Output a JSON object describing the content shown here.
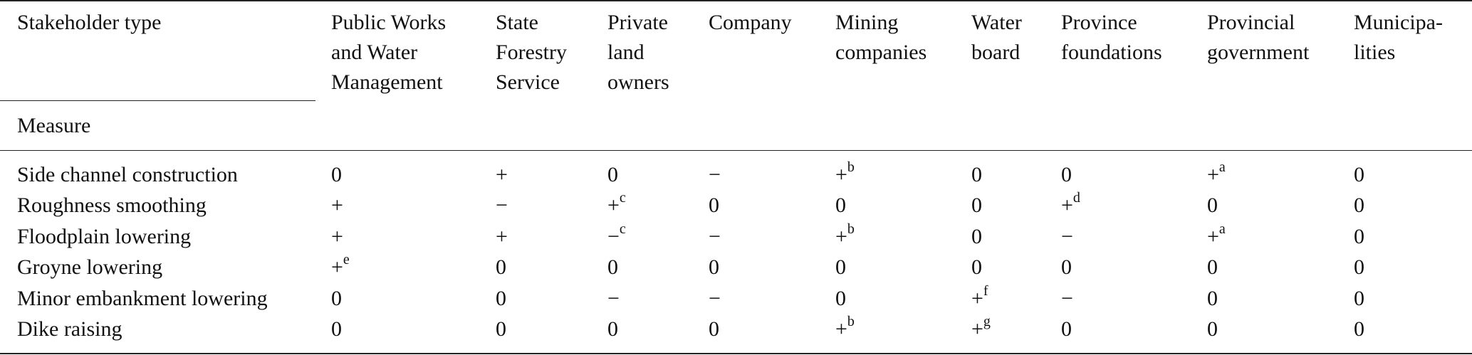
{
  "table": {
    "row_header": "Stakeholder type",
    "column_header": "Measure",
    "columns": [
      [
        "Public Works",
        "and Water",
        "Management"
      ],
      [
        "State",
        "Forestry",
        "Service"
      ],
      [
        "Private",
        "land",
        "owners"
      ],
      [
        "Company"
      ],
      [
        "Mining",
        "companies"
      ],
      [
        "Water",
        "board"
      ],
      [
        "Province",
        "foundations"
      ],
      [
        "Provincial",
        "government"
      ],
      [
        "Municipa-",
        "lities"
      ]
    ],
    "rows": [
      {
        "measure": "Side channel construction",
        "cells": [
          "0",
          "+",
          "0",
          "−",
          {
            "symbol": "+",
            "note": "b"
          },
          "0",
          "0",
          {
            "symbol": "+",
            "note": "a"
          },
          "0"
        ]
      },
      {
        "measure": "Roughness smoothing",
        "cells": [
          "+",
          "−",
          {
            "symbol": "+",
            "note": "c"
          },
          "0",
          "0",
          "0",
          {
            "symbol": "+",
            "note": "d"
          },
          "0",
          "0"
        ]
      },
      {
        "measure": "Floodplain lowering",
        "cells": [
          "+",
          "+",
          {
            "symbol": "−",
            "note": "c"
          },
          "−",
          {
            "symbol": "+",
            "note": "b"
          },
          "0",
          "−",
          {
            "symbol": "+",
            "note": "a"
          },
          "0"
        ]
      },
      {
        "measure": "Groyne lowering",
        "cells": [
          {
            "symbol": "+",
            "note": "e"
          },
          "0",
          "0",
          "0",
          "0",
          "0",
          "0",
          "0",
          "0"
        ]
      },
      {
        "measure": "Minor embankment lowering",
        "cells": [
          "0",
          "0",
          "−",
          "−",
          "0",
          {
            "symbol": "+",
            "note": "f"
          },
          "−",
          "0",
          "0"
        ]
      },
      {
        "measure": "Dike raising",
        "cells": [
          "0",
          "0",
          "0",
          "0",
          {
            "symbol": "+",
            "note": "b"
          },
          {
            "symbol": "+",
            "note": "g"
          },
          "0",
          "0",
          "0"
        ]
      }
    ]
  }
}
